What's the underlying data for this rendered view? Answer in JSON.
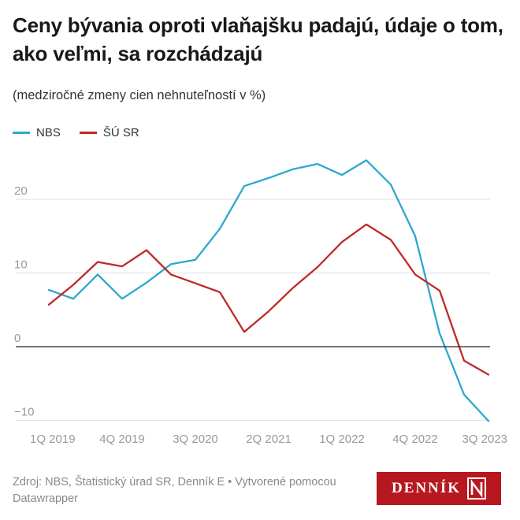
{
  "title": "Ceny bývania oproti vlaňajšku padajú, údaje o tom, ako veľmi, sa rozchádzajú",
  "subtitle": "(medziročné zmeny cien nehnuteľností v %)",
  "footer": "Zdroj: NBS, Štatistický úrad SR, Denník E • Vytvorené pomocou Datawrapper",
  "logo_text": "DENNÍK",
  "logo_icon": "denník-n-mark",
  "colors": {
    "nbs": "#2ea7cf",
    "susr": "#c0282a",
    "grid": "#e2e2e2",
    "zero": "#222222",
    "axis_text": "#999999"
  },
  "chart_data": {
    "type": "line",
    "title": "Ceny bývania oproti vlaňajšku padajú, údaje o tom, ako veľmi, sa rozchádzajú",
    "subtitle": "(medziročné zmeny cien nehnuteľností v %)",
    "xlabel": "",
    "ylabel": "",
    "x": [
      "1Q 2019",
      "2Q 2019",
      "3Q 2019",
      "4Q 2019",
      "1Q 2020",
      "2Q 2020",
      "3Q 2020",
      "4Q 2020",
      "1Q 2021",
      "2Q 2021",
      "3Q 2021",
      "4Q 2021",
      "1Q 2022",
      "2Q 2022",
      "3Q 2022",
      "4Q 2022",
      "1Q 2023",
      "2Q 2023",
      "3Q 2023"
    ],
    "xticks": [
      "1Q 2019",
      "4Q 2019",
      "3Q 2020",
      "2Q 2021",
      "1Q 2022",
      "4Q 2022",
      "3Q 2023"
    ],
    "yticks": [
      -10,
      0,
      10,
      20
    ],
    "ylim": [
      -10,
      26
    ],
    "grid": true,
    "legend": "top-left",
    "series": [
      {
        "name": "NBS",
        "color": "#2ea7cf",
        "values": [
          7.7,
          6.5,
          9.8,
          6.5,
          8.7,
          11.2,
          11.8,
          16.0,
          21.8,
          22.9,
          24.1,
          24.8,
          23.3,
          25.3,
          22.0,
          15.0,
          1.8,
          -6.5,
          -10.1
        ]
      },
      {
        "name": "ŠÚ SR",
        "color": "#c0282a",
        "values": [
          5.7,
          8.4,
          11.5,
          10.9,
          13.1,
          9.8,
          8.6,
          7.4,
          2.0,
          4.8,
          8.0,
          10.8,
          14.2,
          16.6,
          14.5,
          9.8,
          7.6,
          -1.9,
          -3.8
        ]
      }
    ]
  }
}
